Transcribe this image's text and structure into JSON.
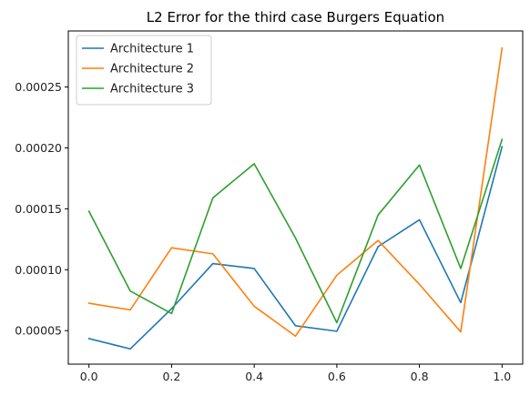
{
  "chart_data": {
    "type": "line",
    "title": "L2 Error for the third case Burgers Equation",
    "xlabel": "",
    "ylabel": "",
    "x": [
      0.0,
      0.1,
      0.2,
      0.3,
      0.4,
      0.5,
      0.6,
      0.7,
      0.8,
      0.9,
      1.0
    ],
    "xlim": [
      -0.05,
      1.05
    ],
    "ylim": [
      2.25e-05,
      0.000296
    ],
    "xticks": [
      0.0,
      0.2,
      0.4,
      0.6,
      0.8,
      1.0
    ],
    "xtick_labels": [
      "0.0",
      "0.2",
      "0.4",
      "0.6",
      "0.8",
      "1.0"
    ],
    "yticks": [
      5e-05,
      0.0001,
      0.00015,
      0.0002,
      0.00025
    ],
    "ytick_labels": [
      "0.00005",
      "0.00010",
      "0.00015",
      "0.00020",
      "0.00025"
    ],
    "grid": false,
    "legend_position": "top-left",
    "series": [
      {
        "name": "Architecture 1",
        "color": "#1f77b4",
        "values": [
          4.35e-05,
          3.5e-05,
          6.8e-05,
          0.000105,
          0.000101,
          5.4e-05,
          4.95e-05,
          0.000119,
          0.000141,
          7.3e-05,
          0.000201
        ]
      },
      {
        "name": "Architecture 2",
        "color": "#ff7f0e",
        "values": [
          7.25e-05,
          6.7e-05,
          0.000118,
          0.000113,
          7e-05,
          4.55e-05,
          9.55e-05,
          0.000124,
          8.8e-05,
          4.9e-05,
          0.000282
        ]
      },
      {
        "name": "Architecture 3",
        "color": "#2ca02c",
        "values": [
          0.000148,
          8.25e-05,
          6.4e-05,
          0.000159,
          0.000187,
          0.000126,
          5.65e-05,
          0.000145,
          0.000186,
          0.000101,
          0.000207
        ]
      }
    ]
  }
}
